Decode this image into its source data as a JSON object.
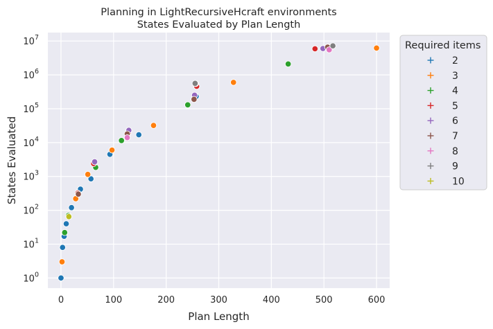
{
  "chart_data": {
    "type": "scatter",
    "title_line1": "Planning in LightRecursiveHcraft environments",
    "title_line2": "States Evaluated by Plan Length",
    "xlabel": "Plan Length",
    "ylabel": "States Evaluated",
    "xlim": [
      -25,
      625
    ],
    "ylim_log10": [
      -0.3,
      7.25
    ],
    "x_ticks": [
      0,
      100,
      200,
      300,
      400,
      500,
      600
    ],
    "y_ticks": [
      {
        "base": "10",
        "exp": "0",
        "value": 0
      },
      {
        "base": "10",
        "exp": "1",
        "value": 1
      },
      {
        "base": "10",
        "exp": "2",
        "value": 2
      },
      {
        "base": "10",
        "exp": "3",
        "value": 3
      },
      {
        "base": "10",
        "exp": "4",
        "value": 4
      },
      {
        "base": "10",
        "exp": "5",
        "value": 5
      },
      {
        "base": "10",
        "exp": "6",
        "value": 6
      },
      {
        "base": "10",
        "exp": "7",
        "value": 7
      }
    ],
    "legend": {
      "title": "Required items",
      "position": "outside-right",
      "entries": [
        {
          "label": "2",
          "color": "#1f77b4"
        },
        {
          "label": "3",
          "color": "#ff7f0e"
        },
        {
          "label": "4",
          "color": "#2ca02c"
        },
        {
          "label": "5",
          "color": "#d62728"
        },
        {
          "label": "6",
          "color": "#9467bd"
        },
        {
          "label": "7",
          "color": "#8c564b"
        },
        {
          "label": "8",
          "color": "#e377c2"
        },
        {
          "label": "9",
          "color": "#7f7f7f"
        },
        {
          "label": "10",
          "color": "#bcbd22"
        }
      ]
    },
    "series": [
      {
        "name": "2",
        "color": "#1f77b4",
        "points": [
          [
            0,
            1
          ],
          [
            3,
            8
          ],
          [
            6,
            17
          ],
          [
            10,
            40
          ],
          [
            20,
            120
          ],
          [
            37,
            420
          ],
          [
            57,
            850
          ],
          [
            93,
            4500
          ],
          [
            148,
            17000
          ],
          [
            257,
            230000
          ]
        ]
      },
      {
        "name": "3",
        "color": "#ff7f0e",
        "points": [
          [
            2,
            3
          ],
          [
            28,
            220
          ],
          [
            51,
            1150
          ],
          [
            97,
            6000
          ],
          [
            176,
            32000
          ],
          [
            328,
            600000
          ],
          [
            600,
            6200000
          ]
        ]
      },
      {
        "name": "4",
        "color": "#2ca02c",
        "points": [
          [
            7,
            22
          ],
          [
            14,
            70
          ],
          [
            66,
            1850
          ],
          [
            115,
            11500
          ],
          [
            241,
            130000
          ],
          [
            432,
            2100000
          ]
        ]
      },
      {
        "name": "5",
        "color": "#d62728",
        "points": [
          [
            32,
            320
          ],
          [
            62,
            2400
          ],
          [
            128,
            20000
          ],
          [
            258,
            460000
          ],
          [
            483,
            5900000
          ]
        ]
      },
      {
        "name": "6",
        "color": "#9467bd",
        "points": [
          [
            64,
            2700
          ],
          [
            129,
            23000
          ],
          [
            254,
            250000
          ],
          [
            498,
            6000000
          ]
        ]
      },
      {
        "name": "7",
        "color": "#8c564b",
        "points": [
          [
            33,
            300
          ],
          [
            126,
            18000
          ],
          [
            253,
            190000
          ],
          [
            256,
            550000
          ],
          [
            507,
            6600000
          ]
        ]
      },
      {
        "name": "8",
        "color": "#e377c2",
        "points": [
          [
            126,
            14000
          ],
          [
            510,
            5500000
          ]
        ]
      },
      {
        "name": "9",
        "color": "#7f7f7f",
        "points": [
          [
            255,
            560000
          ],
          [
            517,
            7200000
          ]
        ]
      },
      {
        "name": "10",
        "color": "#bcbd22",
        "points": [
          [
            15,
            65
          ]
        ]
      }
    ]
  }
}
